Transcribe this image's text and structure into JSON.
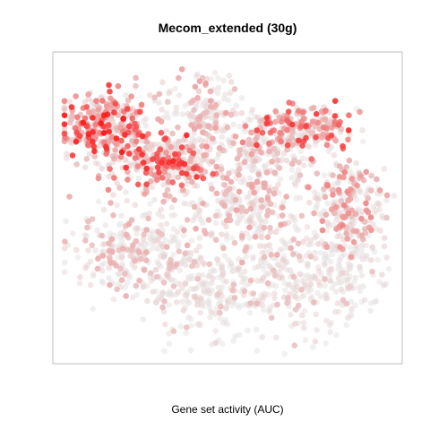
{
  "chart_data": {
    "type": "scatter",
    "title": "Mecom_extended (30g)",
    "xlabel": "Gene set activity (AUC)",
    "ylabel": "",
    "legend": "none",
    "grid": false,
    "axes_ticks_shown": false,
    "xlim": [
      0,
      1
    ],
    "ylim": [
      0,
      1
    ],
    "color_scale": {
      "variable": "Gene set activity (AUC)",
      "low": "#e6e6e6",
      "high": "#ff0000"
    },
    "clusters": [
      {
        "center": [
          0.12,
          0.78
        ],
        "spread": [
          0.07,
          0.06
        ],
        "activity": 0.65,
        "density": 320
      },
      {
        "center": [
          0.3,
          0.66
        ],
        "spread": [
          0.08,
          0.05
        ],
        "activity": 0.6,
        "density": 300
      },
      {
        "center": [
          0.73,
          0.78
        ],
        "spread": [
          0.08,
          0.04
        ],
        "activity": 0.58,
        "density": 200
      },
      {
        "center": [
          0.42,
          0.82
        ],
        "spread": [
          0.06,
          0.07
        ],
        "activity": 0.22,
        "density": 180
      },
      {
        "center": [
          0.6,
          0.7
        ],
        "spread": [
          0.07,
          0.05
        ],
        "activity": 0.18,
        "density": 170
      },
      {
        "center": [
          0.86,
          0.52
        ],
        "spread": [
          0.06,
          0.08
        ],
        "activity": 0.3,
        "density": 220
      },
      {
        "center": [
          0.55,
          0.5
        ],
        "spread": [
          0.1,
          0.08
        ],
        "activity": 0.22,
        "density": 260
      },
      {
        "center": [
          0.22,
          0.35
        ],
        "spread": [
          0.1,
          0.08
        ],
        "activity": 0.18,
        "density": 280
      },
      {
        "center": [
          0.42,
          0.22
        ],
        "spread": [
          0.1,
          0.07
        ],
        "activity": 0.14,
        "density": 240
      },
      {
        "center": [
          0.7,
          0.25
        ],
        "spread": [
          0.09,
          0.09
        ],
        "activity": 0.14,
        "density": 220
      },
      {
        "center": [
          0.88,
          0.3
        ],
        "spread": [
          0.05,
          0.07
        ],
        "activity": 0.12,
        "density": 120
      }
    ]
  }
}
